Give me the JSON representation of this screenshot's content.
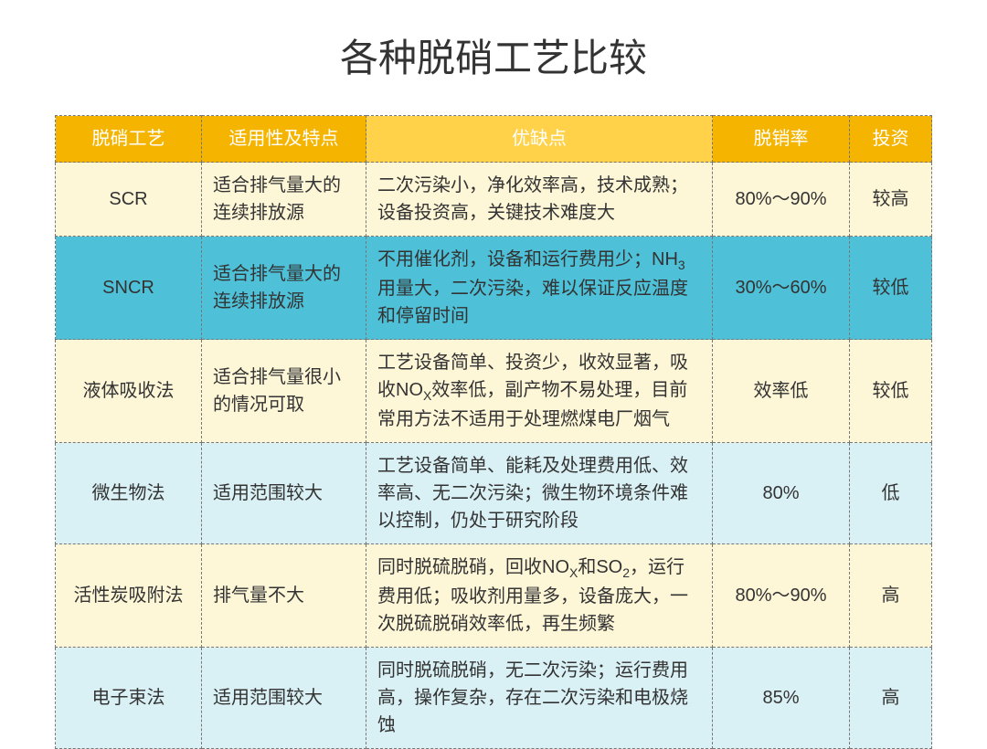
{
  "title": "各种脱硝工艺比较",
  "columns": [
    "脱硝工艺",
    "适用性及特点",
    "优缺点",
    "脱销率",
    "投资"
  ],
  "header_colors": [
    "#f4b400",
    "#f4b400",
    "#ffd24a",
    "#f4b400",
    "#f4b400"
  ],
  "row_colors_alt": [
    "#fdf6d7",
    "#4ec1d8",
    "#fdf6d7",
    "#d9f0f5",
    "#fdf6d7",
    "#d9f0f5"
  ],
  "header_text_color": "#ffffff",
  "body_text_color": "#333333",
  "title_fontsize": 42,
  "cell_fontsize": 20,
  "border_style": "dashed",
  "border_color": "#777777",
  "rows": [
    {
      "process": "SCR",
      "suitability": "适合排气量大的连续排放源",
      "proscons": "二次污染小，净化效率高，技术成熟；设备投资高，关键技术难度大",
      "rate": "80%～90%",
      "invest": "较高"
    },
    {
      "process": "SNCR",
      "suitability": "适合排气量大的连续排放源",
      "proscons": "不用催化剂，设备和运行费用少；NH₃用量大，二次污染，难以保证反应温度和停留时间",
      "rate": "30%～60%",
      "invest": "较低"
    },
    {
      "process": "液体吸收法",
      "suitability": "适合排气量很小的情况可取",
      "proscons": "工艺设备简单、投资少，收效显著，吸收NOx效率低，副产物不易处理，目前常用方法不适用于处理燃煤电厂烟气",
      "rate": "效率低",
      "invest": "较低"
    },
    {
      "process": "微生物法",
      "suitability": "适用范围较大",
      "proscons": "工艺设备简单、能耗及处理费用低、效率高、无二次污染；微生物环境条件难以控制，仍处于研究阶段",
      "rate": "80%",
      "invest": "低"
    },
    {
      "process": "活性炭吸附法",
      "suitability": "排气量不大",
      "proscons": "同时脱硫脱硝，回收NOx和SO₂，运行费用低；吸收剂用量多，设备庞大，一次脱硫脱硝效率低，再生频繁",
      "rate": "80%～90%",
      "invest": "高"
    },
    {
      "process": "电子束法",
      "suitability": "适用范围较大",
      "proscons": "同时脱硫脱硝，无二次污染；运行费用高，操作复杂，存在二次污染和电极烧蚀",
      "rate": "85%",
      "invest": "高"
    }
  ]
}
